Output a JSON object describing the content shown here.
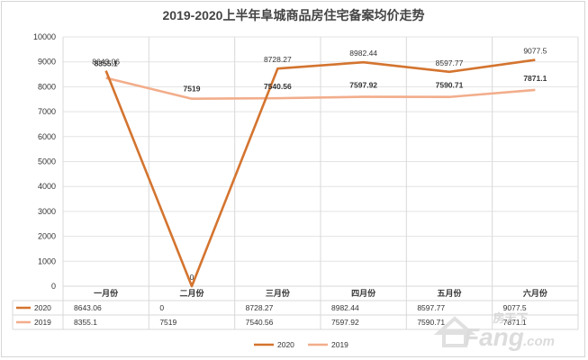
{
  "chart_data": {
    "type": "line",
    "title": "2019-2020上半年阜城商品房住宅备案均价走势",
    "categories": [
      "一月份",
      "二月份",
      "三月份",
      "四月份",
      "五月份",
      "六月份"
    ],
    "series": [
      {
        "name": "2020",
        "values": [
          8643.06,
          0,
          8728.27,
          8982.44,
          8597.77,
          9077.5
        ],
        "labels": [
          "8643.06",
          "0",
          "8728.27",
          "8982.44",
          "8597.77",
          "9077.5"
        ],
        "color": "#d4742f"
      },
      {
        "name": "2019",
        "values": [
          8355.1,
          7519,
          7540.56,
          7597.92,
          7590.71,
          7871.1
        ],
        "labels": [
          "8355.1",
          "7519",
          "7540.56",
          "7597.92",
          "7590.71",
          "7871.1"
        ],
        "color": "#f2ad8b"
      }
    ],
    "ylim": [
      0,
      10000
    ],
    "yticks": [
      0,
      1000,
      2000,
      3000,
      4000,
      5000,
      6000,
      7000,
      8000,
      9000,
      10000
    ],
    "ytick_labels": [
      "0",
      "1000",
      "2000",
      "3000",
      "4000",
      "5000",
      "6000",
      "7000",
      "8000",
      "9000",
      "10000"
    ],
    "grid": true,
    "legend_position": "bottom",
    "data_table": true
  },
  "watermark": {
    "top_text": "房天下",
    "brand_text": "Fang",
    "suffix_text": ".com"
  }
}
